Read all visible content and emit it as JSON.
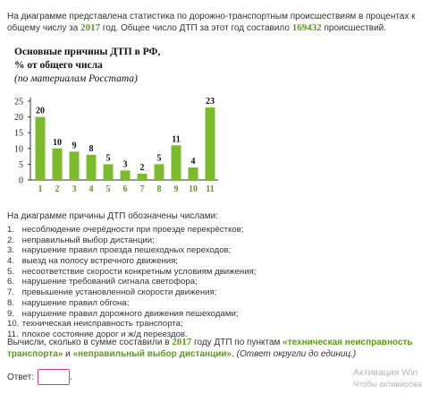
{
  "intro": {
    "line_start": "На диаграмме представлена статистика по дорожно-транспортным происшествиям в процентах к общему числу за ",
    "year": "2017",
    "middle": " год. Общее число ДТП за этот год составило ",
    "total": "169432",
    "end": " происшествий."
  },
  "chart_data": {
    "type": "bar",
    "title": "Основные причины ДТП в РФ,",
    "subtitle": "% от общего числа",
    "source_note": "(по материалам Росстата)",
    "categories": [
      "1",
      "2",
      "3",
      "4",
      "5",
      "6",
      "7",
      "8",
      "9",
      "10",
      "11"
    ],
    "values": [
      20,
      10,
      9,
      8,
      5,
      3,
      2,
      5,
      11,
      4,
      23
    ],
    "yticks": [
      "0",
      "5",
      "10",
      "15",
      "20",
      "25"
    ],
    "ylim": [
      0,
      25
    ],
    "grid": false,
    "bar_color": "#7cbb2c",
    "tick_label_color": "#5a9c1a"
  },
  "legend_intro": "На диаграмме причины ДТП обозначены числами:",
  "reasons": [
    {
      "num": "1.",
      "text": "несоблюдение очерёдности при проезде перекрёстков;"
    },
    {
      "num": "2.",
      "text": "неправильный выбор дистанции;"
    },
    {
      "num": "3.",
      "text": "нарушение правил проезда пешеходных переходов;"
    },
    {
      "num": "4.",
      "text": "выезд на полосу встречного движения;"
    },
    {
      "num": "5.",
      "text": "несоответствие скорости конкретным условиям движения;"
    },
    {
      "num": "6.",
      "text": "нарушение требований сигнала светофора;"
    },
    {
      "num": "7.",
      "text": "превышение установленной скорости движения;"
    },
    {
      "num": "8.",
      "text": "нарушение правил обгона;"
    },
    {
      "num": "9.",
      "text": "нарушение правил дорожного движения пешеходами;"
    },
    {
      "num": "10.",
      "text": "техническая неисправность транспорта;"
    },
    {
      "num": "11.",
      "text": "плохое состояние дорог и ж/д переездов."
    }
  ],
  "question": {
    "start": "Вычисли, сколько в сумме составили в ",
    "year": "2017",
    "mid": " году ДТП по пунктам ",
    "item1": "«техническая неисправность транспорта»",
    "and": " и ",
    "item2": "«неправильный выбор дистанции»",
    "dot": ".  ",
    "note": "(Ответ округли до единиц.)"
  },
  "answer": {
    "label": "Ответ:",
    "value": "",
    "suffix": "."
  },
  "watermark": {
    "line1": "Активация Win",
    "line2": "Чтобы активирова"
  },
  "colors": {
    "accent_green": "#5a9c1a",
    "answer_border": "#d63b8c"
  }
}
